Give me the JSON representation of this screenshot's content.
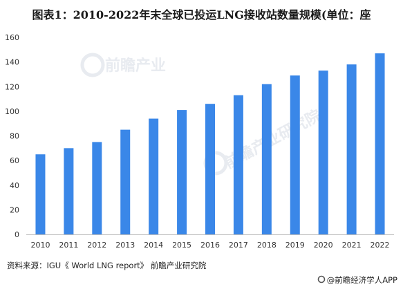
{
  "chart_data": {
    "type": "bar",
    "title": "图表1：2010-2022年末全球已投运LNG接收站数量规模(单位：座",
    "categories": [
      "2010",
      "2011",
      "2012",
      "2013",
      "2014",
      "2015",
      "2016",
      "2017",
      "2018",
      "2019",
      "2020",
      "2021",
      "2022"
    ],
    "series": [
      {
        "values": [
          65,
          70,
          75,
          85,
          94,
          101,
          106,
          113,
          122,
          129,
          133,
          138,
          147
        ]
      }
    ],
    "ylim": [
      0,
      160
    ],
    "yticks": [
      0,
      20,
      40,
      60,
      80,
      100,
      120,
      140,
      160
    ],
    "grid": false,
    "bar_color": "#3a87e8"
  },
  "source": "资料来源：IGU《 World LNG report》 前瞻产业研究院",
  "brand": "@前瞻经济学人APP",
  "colors": {
    "bar": "#3a87e8",
    "watermark": "#e6e9ee"
  }
}
